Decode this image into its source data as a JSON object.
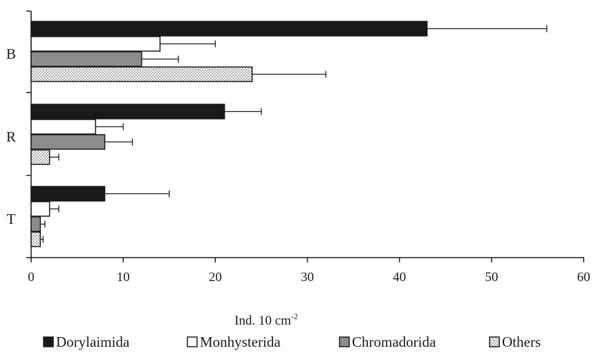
{
  "chart_data": {
    "type": "bar",
    "orientation": "horizontal",
    "categories": [
      "B",
      "R",
      "T"
    ],
    "series": [
      {
        "name": "Dorylaimida",
        "values": [
          43,
          21,
          8
        ],
        "errors": [
          13,
          4,
          7
        ],
        "color": "#1a1a1a",
        "pattern": "solid"
      },
      {
        "name": "Monhysterida",
        "values": [
          14,
          7,
          2
        ],
        "errors": [
          6,
          3,
          1
        ],
        "color": "#ffffff",
        "pattern": "solid"
      },
      {
        "name": "Chromadorida",
        "values": [
          12,
          8,
          1
        ],
        "errors": [
          4,
          3,
          0.5
        ],
        "color": "#8c8c8c",
        "pattern": "solid"
      },
      {
        "name": "Others",
        "values": [
          24,
          2,
          1
        ],
        "errors": [
          8,
          1,
          0.3
        ],
        "color": "#ffffff",
        "pattern": "dots"
      }
    ],
    "xlim": [
      0,
      60
    ],
    "xticks": [
      "0",
      "10",
      "20",
      "30",
      "40",
      "50",
      "60"
    ],
    "xlabel": "Ind. 10 cm",
    "xlabel_superscript": "-2",
    "legend_position": "bottom",
    "grid": false
  }
}
